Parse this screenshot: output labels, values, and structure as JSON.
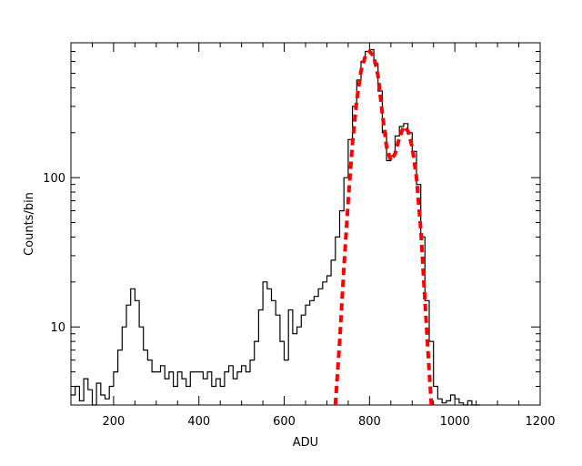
{
  "chart_data": {
    "type": "line",
    "title": "",
    "xlabel": "ADU",
    "ylabel": "Counts/bin",
    "xlim": [
      100,
      1200
    ],
    "ylim": [
      3,
      800
    ],
    "yscale": "log",
    "grid": false,
    "x_ticks": [
      200,
      400,
      600,
      800,
      1000,
      1200
    ],
    "x_tick_labels": [
      "200",
      "400",
      "600",
      "800",
      "1000",
      "1200"
    ],
    "y_ticks": [
      10,
      100
    ],
    "y_tick_labels": [
      "10",
      "100"
    ],
    "series": [
      {
        "role": "histogram",
        "color": "#000000",
        "style": "solid-step",
        "x": [
          100,
          110,
          120,
          130,
          140,
          150,
          160,
          170,
          180,
          190,
          200,
          210,
          220,
          230,
          240,
          250,
          260,
          270,
          280,
          290,
          300,
          310,
          320,
          330,
          340,
          350,
          360,
          370,
          380,
          390,
          400,
          410,
          420,
          430,
          440,
          450,
          460,
          470,
          480,
          490,
          500,
          510,
          520,
          530,
          540,
          550,
          560,
          570,
          580,
          590,
          600,
          610,
          620,
          630,
          640,
          650,
          660,
          670,
          680,
          690,
          700,
          710,
          720,
          730,
          740,
          750,
          760,
          770,
          780,
          790,
          800,
          810,
          820,
          830,
          840,
          850,
          860,
          870,
          880,
          890,
          900,
          910,
          920,
          930,
          940,
          950,
          960,
          970,
          980,
          990,
          1000,
          1010,
          1020,
          1030,
          1040,
          1050
        ],
        "y": [
          3.5,
          4,
          3.2,
          4.5,
          3.8,
          3,
          4.2,
          3.5,
          3.3,
          4,
          5,
          7,
          10,
          14,
          18,
          15,
          10,
          7,
          6,
          5,
          5,
          5.5,
          4.5,
          5,
          4,
          5,
          4.5,
          4,
          5,
          5,
          5,
          4.5,
          5,
          4,
          4.5,
          4,
          5,
          5.5,
          4.5,
          5,
          5.5,
          5,
          6,
          8,
          13,
          20,
          18,
          15,
          12,
          8,
          6,
          13,
          9,
          10,
          12,
          14,
          15,
          16,
          18,
          20,
          22,
          28,
          40,
          60,
          100,
          180,
          300,
          450,
          600,
          700,
          720,
          580,
          380,
          200,
          130,
          140,
          190,
          220,
          230,
          200,
          150,
          90,
          40,
          15,
          8,
          4,
          3.3,
          3.1,
          3.2,
          3.5,
          3.3,
          3.1,
          3,
          3.2,
          3,
          3
        ]
      },
      {
        "role": "model-fit",
        "color": "#ff0000",
        "style": "dashed",
        "x": [
          720,
          730,
          740,
          750,
          760,
          770,
          780,
          790,
          800,
          810,
          820,
          830,
          840,
          850,
          860,
          870,
          880,
          890,
          900,
          910,
          920,
          930,
          940,
          945
        ],
        "y": [
          3,
          8,
          25,
          70,
          170,
          330,
          520,
          650,
          700,
          650,
          480,
          270,
          160,
          130,
          145,
          185,
          220,
          205,
          160,
          100,
          45,
          15,
          5,
          3
        ]
      }
    ]
  }
}
